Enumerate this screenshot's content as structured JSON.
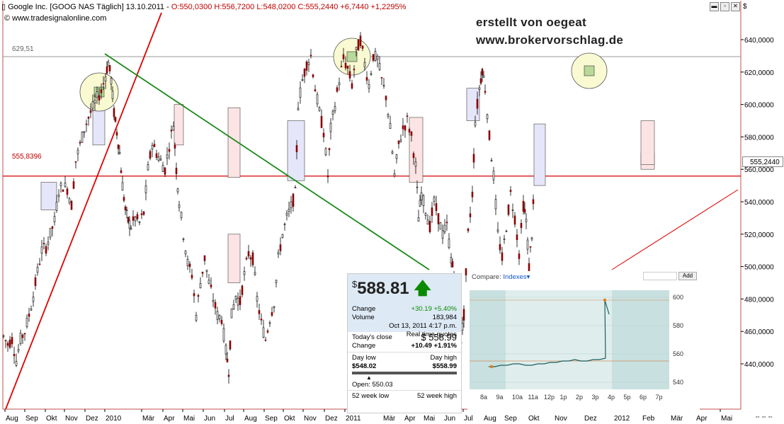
{
  "header": {
    "title_left": "Google Inc. [GOOG NAS  Täglich] 13.10.2011 - ",
    "ohlc": "O:550,0300 H:556,7200 L:548,0200 ",
    "close_change": "C:555,2440 +6,7440 +1,2295%",
    "source": "www.tradesignalonline.com"
  },
  "watermark": {
    "line1": "erstellt von oegeat",
    "line2": "www.brokervorschlag.de"
  },
  "colors": {
    "bg": "#ffffff",
    "candle_up": "#000000",
    "candle_down": "#8b0000",
    "hline": "#d40000",
    "trend_red": "#e00000",
    "trend_green": "#1a8a1a",
    "box_blue": "#e6e6fa",
    "box_pink": "#fde4e4",
    "circle": "#fafad2"
  },
  "levels": {
    "top_label": "629,51",
    "mid_label": "555,8396",
    "last_price": "555,2440"
  },
  "chart_data": {
    "type": "candlestick",
    "title": "Google Inc. [GOOG NAS  Täglich] 13.10.2011",
    "y_ticks": [
      "640,0000",
      "620,0000",
      "600,0000",
      "580,0000",
      "560,0000",
      "540,0000",
      "520,0000",
      "500,0000",
      "480,0000",
      "460,0000",
      "440,0000"
    ],
    "ylim": [
      427,
      651
    ],
    "x_ticks": [
      "Aug",
      "Sep",
      "Okt",
      "Nov",
      "Dez",
      "2010",
      "Mär",
      "Apr",
      "Mai",
      "Jun",
      "Jul",
      "Aug",
      "Sep",
      "Okt",
      "Nov",
      "Dez",
      "2011",
      "Mär",
      "Apr",
      "Mai",
      "Jun",
      "Jul",
      "Aug",
      "Sep",
      "Okt",
      "Nov",
      "Dez",
      "2012",
      "Feb",
      "Mär",
      "Apr",
      "Mai"
    ],
    "horizontal_lines": [
      629.51,
      555.8396
    ],
    "close_path": [
      [
        0,
        457
      ],
      [
        6,
        452
      ],
      [
        12,
        455
      ],
      [
        18,
        442
      ],
      [
        24,
        455
      ],
      [
        30,
        460
      ],
      [
        36,
        470
      ],
      [
        42,
        482
      ],
      [
        48,
        497
      ],
      [
        54,
        510
      ],
      [
        60,
        512
      ],
      [
        66,
        520
      ],
      [
        72,
        528
      ],
      [
        78,
        547
      ],
      [
        84,
        550
      ],
      [
        90,
        548
      ],
      [
        96,
        538
      ],
      [
        102,
        565
      ],
      [
        108,
        575
      ],
      [
        114,
        585
      ],
      [
        120,
        592
      ],
      [
        126,
        598
      ],
      [
        132,
        604
      ],
      [
        138,
        608
      ],
      [
        144,
        618
      ],
      [
        148,
        626
      ],
      [
        152,
        615
      ],
      [
        156,
        595
      ],
      [
        160,
        583
      ],
      [
        164,
        570
      ],
      [
        168,
        550
      ],
      [
        172,
        535
      ],
      [
        176,
        528
      ],
      [
        180,
        525
      ],
      [
        186,
        530
      ],
      [
        192,
        527
      ],
      [
        198,
        533
      ],
      [
        204,
        560
      ],
      [
        210,
        576
      ],
      [
        216,
        570
      ],
      [
        222,
        565
      ],
      [
        228,
        560
      ],
      [
        234,
        575
      ],
      [
        240,
        588
      ],
      [
        244,
        560
      ],
      [
        248,
        540
      ],
      [
        254,
        520
      ],
      [
        260,
        502
      ],
      [
        266,
        495
      ],
      [
        272,
        470
      ],
      [
        278,
        490
      ],
      [
        284,
        505
      ],
      [
        290,
        490
      ],
      [
        296,
        480
      ],
      [
        302,
        470
      ],
      [
        308,
        468
      ],
      [
        314,
        448
      ],
      [
        318,
        436
      ],
      [
        322,
        470
      ],
      [
        328,
        482
      ],
      [
        334,
        478
      ],
      [
        340,
        495
      ],
      [
        346,
        508
      ],
      [
        352,
        505
      ],
      [
        358,
        480
      ],
      [
        364,
        465
      ],
      [
        370,
        455
      ],
      [
        376,
        468
      ],
      [
        382,
        478
      ],
      [
        388,
        505
      ],
      [
        394,
        520
      ],
      [
        400,
        530
      ],
      [
        406,
        537
      ],
      [
        412,
        545
      ],
      [
        416,
        600
      ],
      [
        422,
        615
      ],
      [
        428,
        625
      ],
      [
        434,
        630
      ],
      [
        440,
        610
      ],
      [
        446,
        595
      ],
      [
        452,
        583
      ],
      [
        458,
        556
      ],
      [
        462,
        585
      ],
      [
        468,
        600
      ],
      [
        474,
        615
      ],
      [
        480,
        628
      ],
      [
        486,
        622
      ],
      [
        492,
        612
      ],
      [
        498,
        632
      ],
      [
        504,
        640
      ],
      [
        510,
        625
      ],
      [
        516,
        612
      ],
      [
        522,
        630
      ],
      [
        528,
        628
      ],
      [
        534,
        615
      ],
      [
        540,
        605
      ],
      [
        546,
        585
      ],
      [
        552,
        556
      ],
      [
        558,
        575
      ],
      [
        564,
        585
      ],
      [
        570,
        590
      ],
      [
        576,
        580
      ],
      [
        582,
        562
      ],
      [
        586,
        530
      ],
      [
        590,
        545
      ],
      [
        596,
        535
      ],
      [
        602,
        525
      ],
      [
        608,
        540
      ],
      [
        614,
        530
      ],
      [
        620,
        520
      ],
      [
        626,
        525
      ],
      [
        632,
        505
      ],
      [
        636,
        495
      ],
      [
        640,
        480
      ],
      [
        646,
        455
      ],
      [
        650,
        470
      ],
      [
        656,
        520
      ],
      [
        662,
        545
      ],
      [
        666,
        590
      ],
      [
        672,
        610
      ],
      [
        676,
        622
      ],
      [
        680,
        610
      ],
      [
        686,
        580
      ],
      [
        692,
        556
      ],
      [
        698,
        520
      ],
      [
        704,
        505
      ],
      [
        710,
        525
      ],
      [
        716,
        545
      ],
      [
        722,
        530
      ],
      [
        728,
        508
      ],
      [
        734,
        538
      ],
      [
        738,
        528
      ],
      [
        742,
        500
      ],
      [
        746,
        520
      ],
      [
        750,
        555
      ]
    ],
    "channel_boxes_y": [
      [
        535,
        552
      ],
      [
        553,
        590
      ],
      [
        575,
        600
      ],
      [
        552,
        592
      ],
      [
        590,
        610
      ],
      [
        550,
        588
      ],
      [
        560,
        570
      ],
      [
        555,
        598
      ],
      [
        575,
        597
      ],
      [
        490,
        520
      ],
      [
        563,
        590
      ]
    ],
    "trendlines": [
      "red-uptrend",
      "green-downtrend",
      "red-diagonal-right"
    ]
  },
  "quote": {
    "currency": "$",
    "price": "588.81",
    "change_label": "Change",
    "change_value": "+30.19 +5.40%",
    "volume_label": "Volume",
    "volume_value": "183,984",
    "time": "Oct 13, 2011 4:17 p.m.",
    "realtime": "Real time quotes",
    "todays_close_label": "Today's close",
    "todays_close_value": "558.99",
    "change2_label": "Change",
    "change2_value": "+10.49 +1.91%",
    "day_low_label": "Day low",
    "day_high_label": "Day high",
    "day_low": "$548.02",
    "day_high": "$558.99",
    "open": "Open: 550.03",
    "wk_low_label": "52 week low",
    "wk_high_label": "52 week high"
  },
  "mini": {
    "compare_label": "Compare:",
    "indexes_label": "Indexes",
    "add_label": "Add",
    "y_ticks": [
      "600",
      "580",
      "560",
      "540"
    ],
    "x_ticks": [
      "8a",
      "9a",
      "10a",
      "11a",
      "12p",
      "1p",
      "2p",
      "3p",
      "4p",
      "5p",
      "6p",
      "7p"
    ],
    "series": [
      551,
      551,
      552,
      552,
      553,
      553,
      552,
      552,
      553,
      553,
      554,
      554,
      555,
      555,
      556,
      555,
      555,
      556,
      556,
      557,
      598,
      588
    ]
  }
}
